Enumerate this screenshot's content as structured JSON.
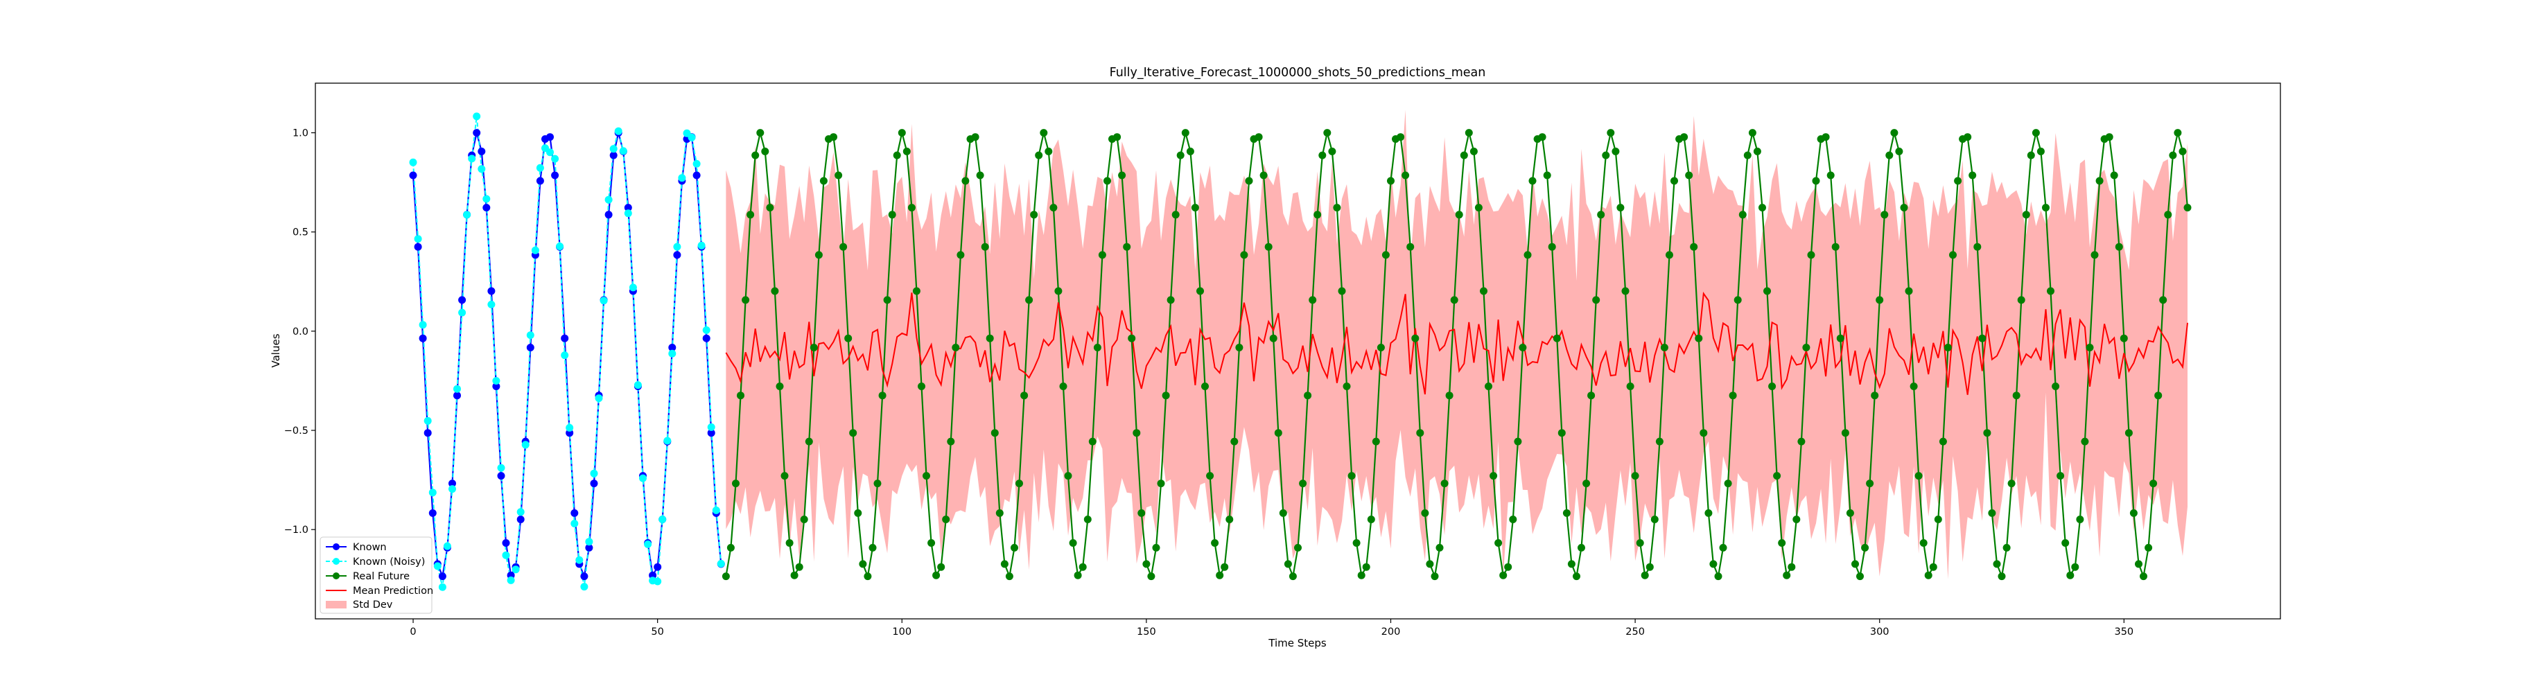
{
  "chart_data": {
    "type": "line",
    "title": "Fully_Iterative_Forecast_1000000_shots_50_predictions_mean",
    "xlabel": "Time Steps",
    "ylabel": "Values",
    "xlim": [
      -20,
      382
    ],
    "ylim": [
      -1.45,
      1.25
    ],
    "xticks": [
      0,
      50,
      100,
      150,
      200,
      250,
      300,
      350
    ],
    "yticks": [
      -1.0,
      -0.5,
      0.0,
      0.5,
      1.0
    ],
    "xtick_labels": [
      "0",
      "50",
      "100",
      "150",
      "200",
      "250",
      "300",
      "350"
    ],
    "ytick_labels": [
      "−1.0",
      "−0.5",
      "0.0",
      "0.5",
      "1.0"
    ],
    "grid": false,
    "legend_position": "lower-left",
    "known_x_range": [
      0,
      63
    ],
    "future_x_range": [
      64,
      363
    ],
    "signal": {
      "amplitude": 1.12,
      "offset": -0.12,
      "period_steps": 14.5,
      "phase_at_0_rad": 2.2
    },
    "prediction_mean_center": -0.1,
    "std_dev_half_width_approx": 0.75,
    "series": [
      {
        "name": "Known",
        "color": "#0000ff",
        "marker": "circle",
        "linestyle": "solid",
        "x_start": 0,
        "x_end": 63
      },
      {
        "name": "Known (Noisy)",
        "color": "#00ffff",
        "marker": "circle",
        "linestyle": "dashed",
        "x_start": 0,
        "x_end": 63
      },
      {
        "name": "Real Future",
        "color": "#008000",
        "marker": "circle",
        "linestyle": "solid",
        "x_start": 64,
        "x_end": 363
      },
      {
        "name": "Mean Prediction",
        "color": "#ff0000",
        "marker": "none",
        "linestyle": "solid",
        "x_start": 64,
        "x_end": 363
      },
      {
        "name": "Std Dev",
        "color": "#ff9999",
        "marker": "band",
        "linestyle": "fill",
        "x_start": 64,
        "x_end": 363
      }
    ]
  },
  "legend": {
    "known": "Known",
    "known_noisy": "Known (Noisy)",
    "real_future": "Real Future",
    "mean_prediction": "Mean Prediction",
    "std_dev": "Std Dev"
  }
}
